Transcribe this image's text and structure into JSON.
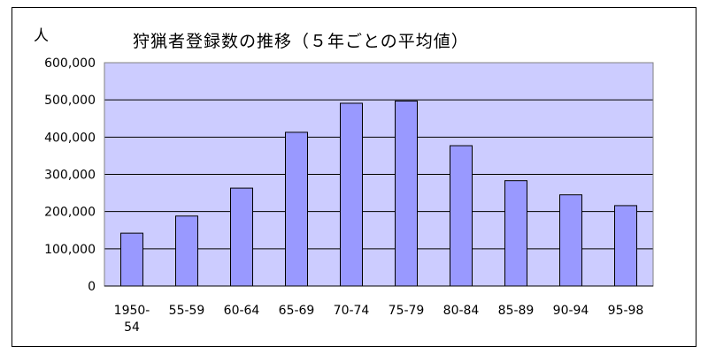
{
  "chart_data": {
    "type": "bar",
    "title": "狩猟者登録数の推移（５年ごとの平均値）",
    "ylabel": "人",
    "xlabel": "",
    "categories": [
      "1950-54",
      "55-59",
      "60-64",
      "65-69",
      "70-74",
      "75-79",
      "80-84",
      "85-89",
      "90-94",
      "95-98"
    ],
    "category_lines": [
      [
        "1950-",
        "54"
      ],
      [
        "55-59"
      ],
      [
        "60-64"
      ],
      [
        "65-69"
      ],
      [
        "70-74"
      ],
      [
        "75-79"
      ],
      [
        "80-84"
      ],
      [
        "85-89"
      ],
      [
        "90-94"
      ],
      [
        "95-98"
      ]
    ],
    "values": [
      142000,
      188000,
      263000,
      413000,
      491000,
      497000,
      377000,
      283000,
      245000,
      216000
    ],
    "ylim": [
      0,
      600000
    ],
    "yticks": [
      0,
      100000,
      200000,
      300000,
      400000,
      500000,
      600000
    ],
    "ytick_labels": [
      "0",
      "100,000",
      "200,000",
      "300,000",
      "400,000",
      "500,000",
      "600,000"
    ],
    "grid": true,
    "legend": "none",
    "colors": {
      "plot_background": "#ccccff",
      "bar_fill": "#9999ff",
      "bar_stroke": "#000000",
      "grid": "#000000"
    }
  }
}
